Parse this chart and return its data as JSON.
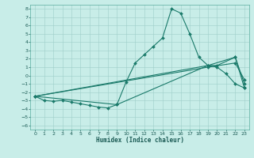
{
  "title": "",
  "xlabel": "Humidex (Indice chaleur)",
  "bg_color": "#c8ede8",
  "grid_color": "#9dcdc8",
  "line_color": "#1a7a6a",
  "xlim": [
    -0.5,
    23.5
  ],
  "ylim": [
    -6.5,
    8.5
  ],
  "xticks": [
    0,
    1,
    2,
    3,
    4,
    5,
    6,
    7,
    8,
    9,
    10,
    11,
    12,
    13,
    14,
    15,
    16,
    17,
    18,
    19,
    20,
    21,
    22,
    23
  ],
  "yticks": [
    8,
    7,
    6,
    5,
    4,
    3,
    2,
    1,
    0,
    -1,
    -2,
    -3,
    -4,
    -5,
    -6
  ],
  "series": [
    {
      "x": [
        0,
        1,
        2,
        3,
        4,
        5,
        6,
        7,
        8,
        9,
        10,
        11,
        12,
        13,
        14,
        15,
        16,
        17,
        18,
        19,
        20,
        21,
        22,
        23
      ],
      "y": [
        -2.5,
        -3,
        -3.1,
        -3,
        -3.2,
        -3.4,
        -3.6,
        -3.8,
        -3.9,
        -3.5,
        -0.8,
        1.5,
        2.5,
        3.5,
        4.5,
        8,
        7.5,
        5,
        2.2,
        1.2,
        1.0,
        0.2,
        -1.0,
        -1.5
      ]
    },
    {
      "x": [
        0,
        19,
        20,
        22,
        23
      ],
      "y": [
        -2.5,
        1.2,
        1.2,
        2.2,
        -1.0
      ]
    },
    {
      "x": [
        0,
        9,
        19,
        22,
        23
      ],
      "y": [
        -2.5,
        -3.5,
        1.2,
        2.2,
        -1.5
      ]
    },
    {
      "x": [
        0,
        19,
        22,
        23
      ],
      "y": [
        -2.5,
        1.0,
        1.5,
        -0.5
      ]
    }
  ]
}
